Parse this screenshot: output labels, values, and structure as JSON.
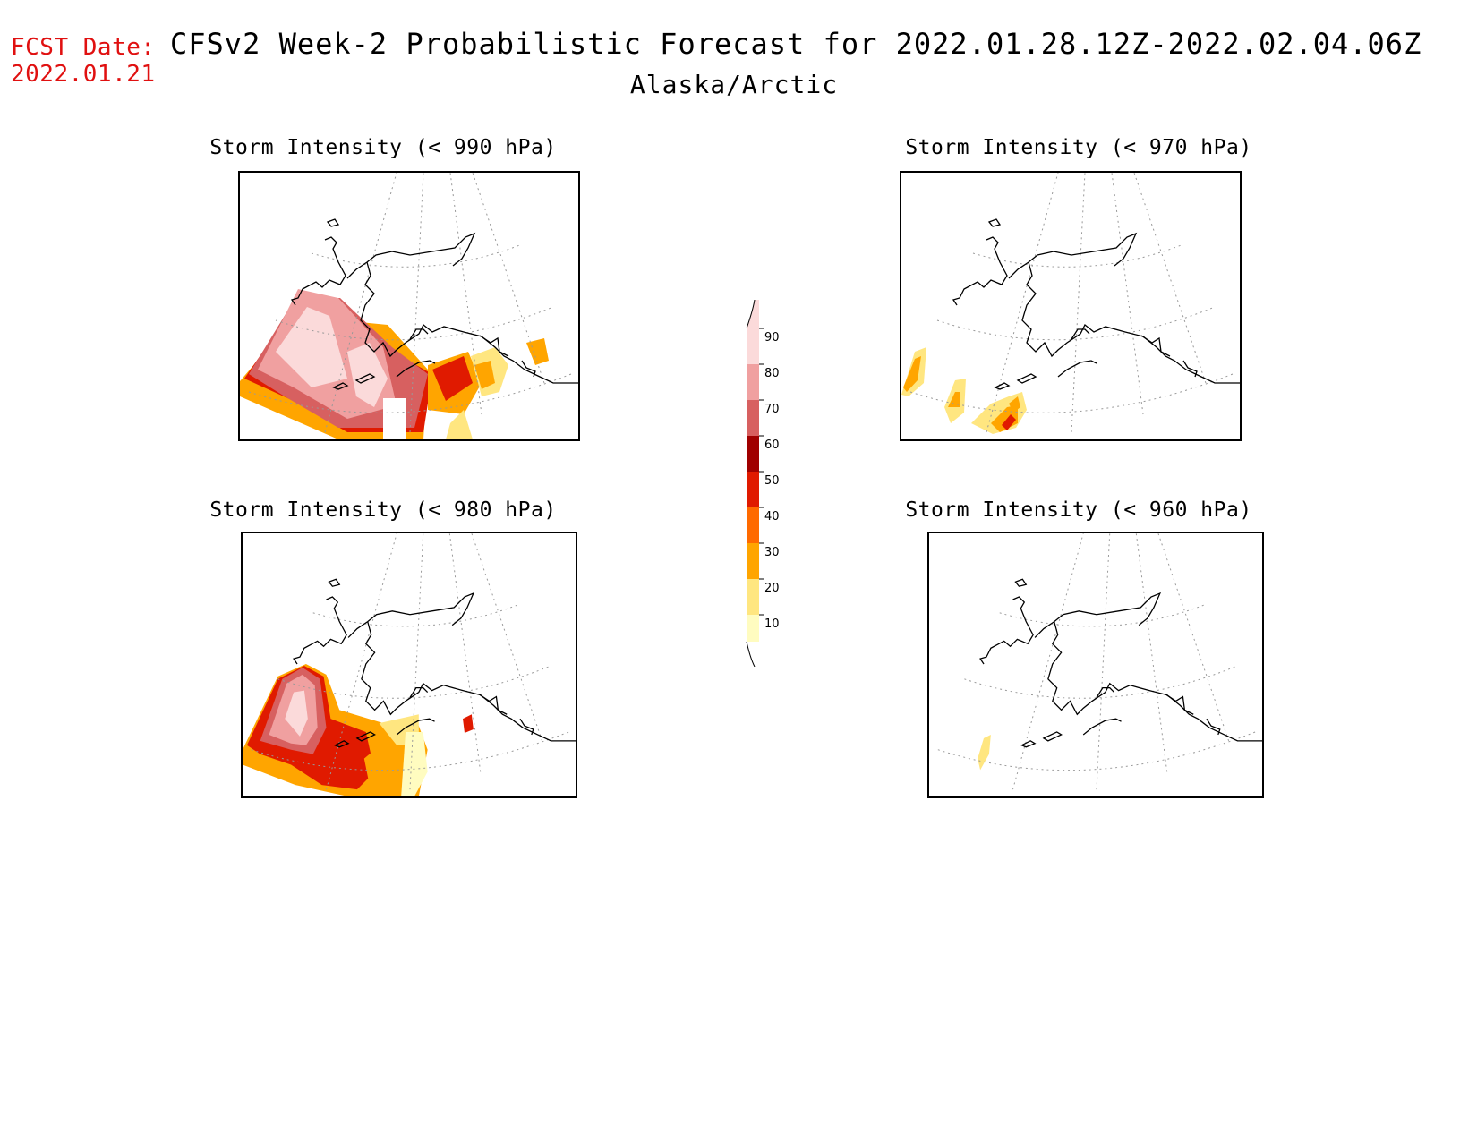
{
  "header": {
    "fcst_label": "FCST Date:",
    "fcst_date": "2022.01.21",
    "title": "CFSv2 Week-2 Probabilistic Forecast for 2022.01.28.12Z-2022.02.04.06Z",
    "region": "Alaska/Arctic"
  },
  "panels": [
    {
      "id": "p990",
      "title": "Storm Intensity (< 990 hPa)"
    },
    {
      "id": "p970",
      "title": "Storm Intensity (< 970 hPa)"
    },
    {
      "id": "p980",
      "title": "Storm Intensity (< 980 hPa)"
    },
    {
      "id": "p960",
      "title": "Storm Intensity (< 960 hPa)"
    }
  ],
  "legend": {
    "ticks": [
      "90",
      "80",
      "70",
      "60",
      "50",
      "40",
      "30",
      "20",
      "10"
    ],
    "colors": {
      "10": "#fffcc0",
      "20": "#ffe680",
      "30": "#ffa500",
      "40": "#ff6a00",
      "50": "#e01a00",
      "60": "#a00000",
      "70": "#d76060",
      "80": "#f0a0a0",
      "90": "#fbdada"
    }
  }
}
